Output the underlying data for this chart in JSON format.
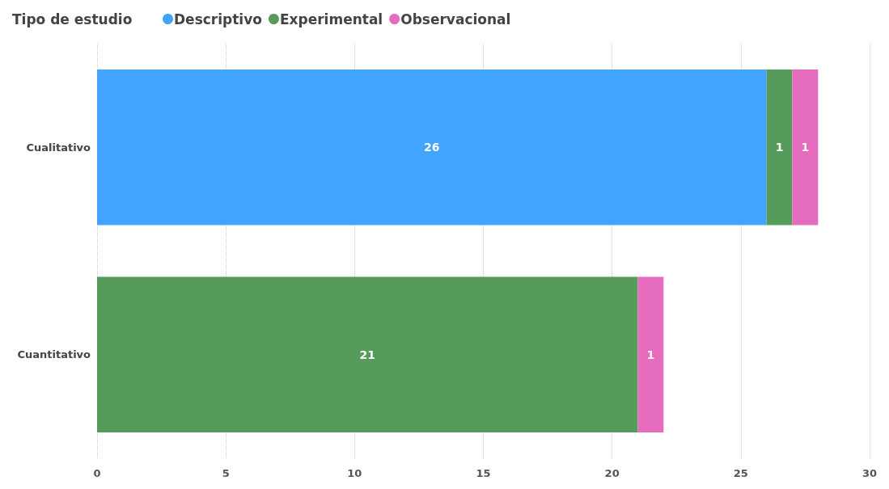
{
  "chart_data": {
    "type": "bar",
    "orientation": "horizontal",
    "stacked": true,
    "legend_title": "Tipo de estudio",
    "categories": [
      "Cualitativo",
      "Cuantitativo"
    ],
    "series": [
      {
        "name": "Descriptivo",
        "color": "#41a4ff",
        "values": [
          26,
          null
        ]
      },
      {
        "name": "Experimental",
        "color": "#569b5a",
        "values": [
          1,
          21
        ]
      },
      {
        "name": "Observacional",
        "color": "#e66cc0",
        "values": [
          1,
          1
        ]
      }
    ],
    "xlim": [
      0,
      30
    ],
    "xticks": [
      0,
      5,
      10,
      15,
      20,
      25,
      30
    ],
    "grid": "x",
    "legend": "top left",
    "data_labels": true
  }
}
